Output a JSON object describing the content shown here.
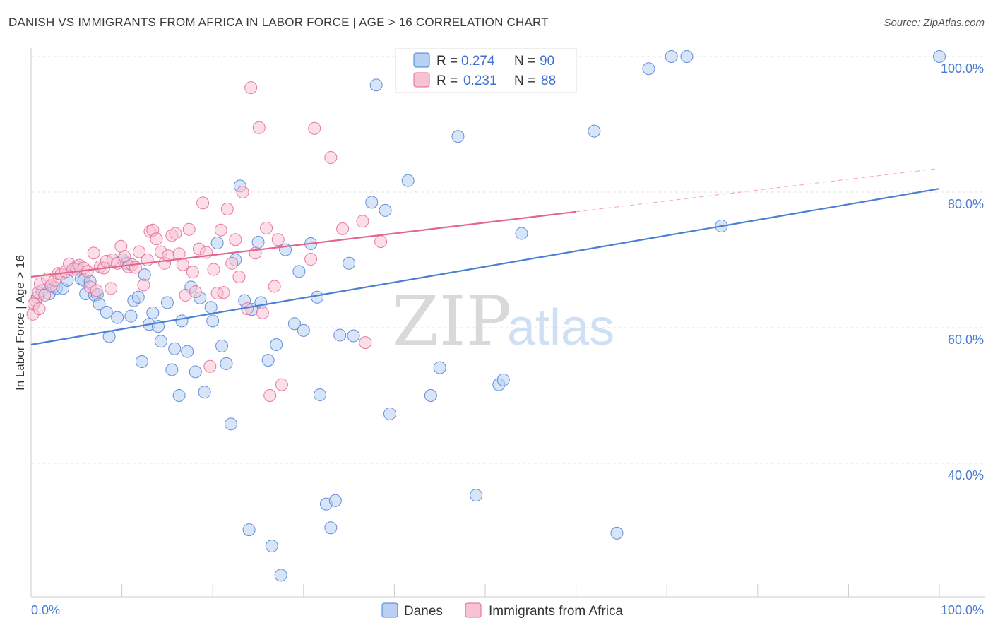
{
  "header": {
    "title": "DANISH VS IMMIGRANTS FROM AFRICA IN LABOR FORCE | AGE > 16 CORRELATION CHART",
    "source": "Source: ZipAtlas.com"
  },
  "legend": {
    "r_label": "R =",
    "n_label": "N =",
    "danes": {
      "r": "0.274",
      "n": "90"
    },
    "africa": {
      "r": "0.231",
      "n": "88"
    }
  },
  "watermark": {
    "zip": "ZIP",
    "atlas": "atlas"
  },
  "chart_data": {
    "type": "scatter",
    "title": "DANISH VS IMMIGRANTS FROM AFRICA IN LABOR FORCE | AGE > 16 CORRELATION CHART",
    "xlabel": "",
    "ylabel": "In Labor Force | Age > 16",
    "xlim": [
      0,
      100
    ],
    "ylim": [
      22,
      103
    ],
    "x_tick_labels": [
      "0.0%",
      "100.0%"
    ],
    "y_ticks": [
      {
        "value": 40,
        "label": "40.0%"
      },
      {
        "value": 60,
        "label": "60.0%"
      },
      {
        "value": 80,
        "label": "80.0%"
      },
      {
        "value": 100,
        "label": "100.0%"
      }
    ],
    "grid": true,
    "legend_position": "top-center",
    "series": [
      {
        "name": "Danes",
        "color": "#4a7fd4",
        "fill": "#b8d0f3",
        "r": 0.274,
        "n": 90,
        "trend": {
          "x0": 0,
          "y0": 57.5,
          "x1": 100,
          "y1": 80.5,
          "dashed_from": null
        },
        "points": [
          [
            0.7,
            64.5
          ],
          [
            1.2,
            65.5
          ],
          [
            2.0,
            65.0
          ],
          [
            2.5,
            66.0
          ],
          [
            2.8,
            65.8
          ],
          [
            3.5,
            65.8
          ],
          [
            4.0,
            67.0
          ],
          [
            5.0,
            69.0
          ],
          [
            5.5,
            67.2
          ],
          [
            6.0,
            65.0
          ],
          [
            5.8,
            67.0
          ],
          [
            6.5,
            66.8
          ],
          [
            7.0,
            64.8
          ],
          [
            7.3,
            64.9
          ],
          [
            7.5,
            63.5
          ],
          [
            8.3,
            62.3
          ],
          [
            8.6,
            58.7
          ],
          [
            9.5,
            61.5
          ],
          [
            10.1,
            70.0
          ],
          [
            10.5,
            69.5
          ],
          [
            11.0,
            61.7
          ],
          [
            11.3,
            64.0
          ],
          [
            11.8,
            64.5
          ],
          [
            12.2,
            55.0
          ],
          [
            12.5,
            67.8
          ],
          [
            13.0,
            60.5
          ],
          [
            13.4,
            62.2
          ],
          [
            14.0,
            60.2
          ],
          [
            14.3,
            58.0
          ],
          [
            15.0,
            63.7
          ],
          [
            15.5,
            53.8
          ],
          [
            15.8,
            56.9
          ],
          [
            16.3,
            50.0
          ],
          [
            16.6,
            61.0
          ],
          [
            17.2,
            56.5
          ],
          [
            17.6,
            66.0
          ],
          [
            18.1,
            53.5
          ],
          [
            18.6,
            64.4
          ],
          [
            19.1,
            50.5
          ],
          [
            19.8,
            63.0
          ],
          [
            20.0,
            61.0
          ],
          [
            20.5,
            72.5
          ],
          [
            21.0,
            57.3
          ],
          [
            21.5,
            54.7
          ],
          [
            22.0,
            45.8
          ],
          [
            22.5,
            70.0
          ],
          [
            23.0,
            80.9
          ],
          [
            23.5,
            64.0
          ],
          [
            24.0,
            30.2
          ],
          [
            24.3,
            62.7
          ],
          [
            25.0,
            72.6
          ],
          [
            25.3,
            63.7
          ],
          [
            26.1,
            55.2
          ],
          [
            26.5,
            27.8
          ],
          [
            27.0,
            57.5
          ],
          [
            27.5,
            23.5
          ],
          [
            28.0,
            71.5
          ],
          [
            29.0,
            60.6
          ],
          [
            29.5,
            68.3
          ],
          [
            30.0,
            59.6
          ],
          [
            30.8,
            72.4
          ],
          [
            31.5,
            64.5
          ],
          [
            31.8,
            50.1
          ],
          [
            32.5,
            34.0
          ],
          [
            33.0,
            30.5
          ],
          [
            33.5,
            34.5
          ],
          [
            34.0,
            58.9
          ],
          [
            35.0,
            69.5
          ],
          [
            35.5,
            58.8
          ],
          [
            37.5,
            78.5
          ],
          [
            38.0,
            95.8
          ],
          [
            39.0,
            77.3
          ],
          [
            39.5,
            47.3
          ],
          [
            41.5,
            81.7
          ],
          [
            44.0,
            50.0
          ],
          [
            45.0,
            54.1
          ],
          [
            47.0,
            88.2
          ],
          [
            49.0,
            35.3
          ],
          [
            51.5,
            51.6
          ],
          [
            52.0,
            52.3
          ],
          [
            54.0,
            73.9
          ],
          [
            62.0,
            89.0
          ],
          [
            64.5,
            29.7
          ],
          [
            68.0,
            98.2
          ],
          [
            70.5,
            100.0
          ],
          [
            72.2,
            100.0
          ],
          [
            76.0,
            75.0
          ],
          [
            100.0,
            100.0
          ]
        ]
      },
      {
        "name": "Immigrants from Africa",
        "color": "#e26690",
        "fill": "#f7c3d3",
        "r": 0.231,
        "n": 88,
        "trend": {
          "x0": 0,
          "y0": 67.5,
          "x1": 100,
          "y1": 83.5,
          "dashed_from": 60
        },
        "points": [
          [
            0.2,
            62.0
          ],
          [
            0.5,
            64.0
          ],
          [
            0.8,
            65.2
          ],
          [
            1.0,
            66.5
          ],
          [
            1.5,
            64.8
          ],
          [
            1.8,
            67.2
          ],
          [
            2.2,
            66.2
          ],
          [
            2.6,
            67.0
          ],
          [
            3.0,
            68.0
          ],
          [
            3.3,
            67.9
          ],
          [
            3.8,
            68.3
          ],
          [
            4.2,
            69.4
          ],
          [
            4.6,
            68.6
          ],
          [
            5.0,
            68.6
          ],
          [
            5.3,
            69.2
          ],
          [
            5.8,
            68.8
          ],
          [
            6.2,
            68.3
          ],
          [
            6.5,
            66.0
          ],
          [
            6.9,
            71.0
          ],
          [
            7.2,
            65.5
          ],
          [
            7.6,
            69.0
          ],
          [
            8.0,
            68.8
          ],
          [
            8.3,
            69.8
          ],
          [
            8.8,
            65.8
          ],
          [
            9.0,
            70.0
          ],
          [
            9.5,
            69.5
          ],
          [
            9.9,
            72.0
          ],
          [
            10.3,
            70.5
          ],
          [
            10.7,
            69.0
          ],
          [
            11.1,
            69.3
          ],
          [
            11.5,
            68.9
          ],
          [
            11.9,
            71.2
          ],
          [
            12.4,
            66.3
          ],
          [
            12.8,
            70.0
          ],
          [
            13.1,
            74.2
          ],
          [
            13.4,
            74.4
          ],
          [
            13.8,
            73.1
          ],
          [
            14.3,
            71.2
          ],
          [
            14.7,
            69.5
          ],
          [
            15.1,
            70.6
          ],
          [
            15.5,
            73.6
          ],
          [
            15.9,
            73.9
          ],
          [
            16.3,
            70.9
          ],
          [
            16.7,
            69.3
          ],
          [
            17.0,
            64.8
          ],
          [
            17.4,
            74.5
          ],
          [
            17.8,
            68.2
          ],
          [
            18.1,
            65.3
          ],
          [
            18.5,
            71.6
          ],
          [
            18.9,
            78.4
          ],
          [
            19.3,
            71.1
          ],
          [
            19.7,
            54.3
          ],
          [
            20.1,
            68.6
          ],
          [
            20.5,
            65.1
          ],
          [
            20.9,
            74.4
          ],
          [
            21.2,
            65.2
          ],
          [
            21.6,
            77.5
          ],
          [
            22.1,
            69.5
          ],
          [
            22.5,
            73.0
          ],
          [
            22.9,
            67.5
          ],
          [
            23.3,
            80.0
          ],
          [
            23.8,
            62.8
          ],
          [
            24.2,
            95.4
          ],
          [
            24.7,
            71.0
          ],
          [
            25.1,
            89.5
          ],
          [
            25.5,
            62.2
          ],
          [
            25.9,
            74.7
          ],
          [
            26.3,
            50.0
          ],
          [
            26.8,
            66.1
          ],
          [
            27.2,
            73.0
          ],
          [
            27.6,
            51.6
          ],
          [
            30.8,
            70.1
          ],
          [
            31.2,
            89.4
          ],
          [
            33.0,
            85.1
          ],
          [
            34.3,
            74.6
          ],
          [
            36.5,
            75.7
          ],
          [
            36.8,
            57.8
          ],
          [
            38.5,
            72.7
          ],
          [
            0.3,
            63.5
          ],
          [
            0.9,
            62.8
          ]
        ]
      }
    ]
  }
}
